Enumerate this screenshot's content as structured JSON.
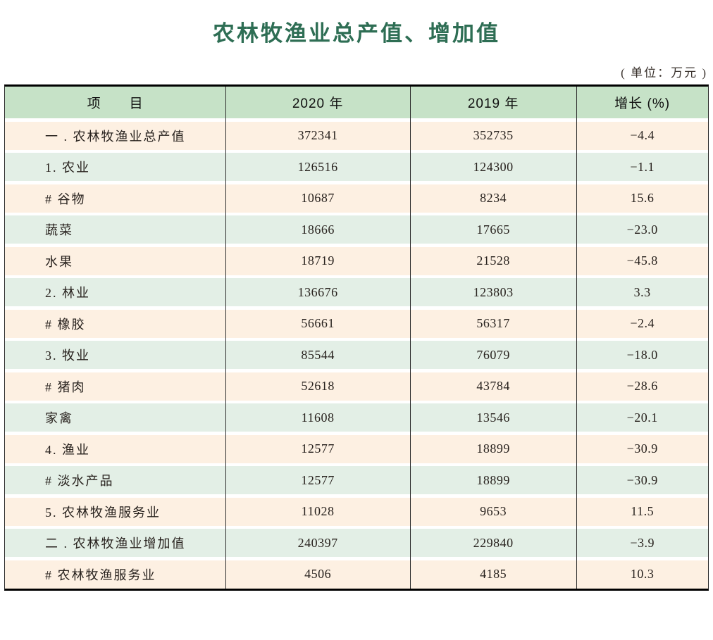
{
  "page": {
    "title": "农林牧渔业总产值、增加值",
    "unit_note": "( 单位：万元 )"
  },
  "colors": {
    "title_green": "#2e6e54",
    "header_bg": "#c6e2c7",
    "row_peach": "#fdf0e2",
    "row_green": "#e3efe6",
    "rule_black": "#000000"
  },
  "table": {
    "columns": [
      "项　　目",
      "2020 年",
      "2019 年",
      "增长 (%)"
    ],
    "rows": [
      {
        "label": "一 . 农林牧渔业总产值",
        "y2020": "372341",
        "y2019": "352735",
        "growth": "−4.4"
      },
      {
        "label": "1. 农业",
        "y2020": "126516",
        "y2019": "124300",
        "growth": "−1.1"
      },
      {
        "label": "# 谷物",
        "y2020": "10687",
        "y2019": "8234",
        "growth": "15.6"
      },
      {
        "label": "蔬菜",
        "y2020": "18666",
        "y2019": "17665",
        "growth": "−23.0"
      },
      {
        "label": "水果",
        "y2020": "18719",
        "y2019": "21528",
        "growth": "−45.8"
      },
      {
        "label": "2. 林业",
        "y2020": "136676",
        "y2019": "123803",
        "growth": "3.3"
      },
      {
        "label": "# 橡胶",
        "y2020": "56661",
        "y2019": "56317",
        "growth": "−2.4"
      },
      {
        "label": "3. 牧业",
        "y2020": "85544",
        "y2019": "76079",
        "growth": "−18.0"
      },
      {
        "label": "# 猪肉",
        "y2020": "52618",
        "y2019": "43784",
        "growth": "−28.6"
      },
      {
        "label": "家禽",
        "y2020": "11608",
        "y2019": "13546",
        "growth": "−20.1"
      },
      {
        "label": "4. 渔业",
        "y2020": "12577",
        "y2019": "18899",
        "growth": "−30.9"
      },
      {
        "label": "# 淡水产品",
        "y2020": "12577",
        "y2019": "18899",
        "growth": "−30.9"
      },
      {
        "label": "5. 农林牧渔服务业",
        "y2020": "11028",
        "y2019": "9653",
        "growth": "11.5"
      },
      {
        "label": "二 . 农林牧渔业增加值",
        "y2020": "240397",
        "y2019": "229840",
        "growth": "−3.9"
      },
      {
        "label": "# 农林牧渔服务业",
        "y2020": "4506",
        "y2019": "4185",
        "growth": "10.3"
      }
    ]
  }
}
